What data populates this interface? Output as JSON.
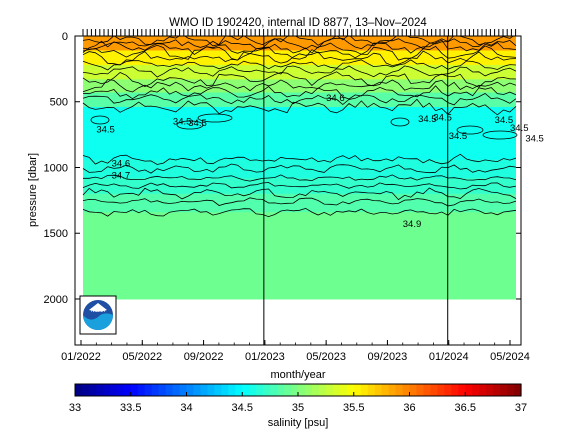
{
  "chart_data": {
    "type": "heatmap",
    "title": "WMO ID 1902420, internal ID 8877, 13–Nov–2024",
    "xlabel": "month/year",
    "ylabel": "pressure [dbar]",
    "colorbar_label": "salinity [psu]",
    "x_ticks": [
      "01/2022",
      "05/2022",
      "09/2022",
      "01/2023",
      "05/2023",
      "09/2023",
      "01/2024",
      "05/2024"
    ],
    "y_ticks": [
      0,
      500,
      1000,
      1500,
      2000
    ],
    "ylim": [
      2350,
      0
    ],
    "colorbar_range": [
      33,
      37
    ],
    "colorbar_ticks": [
      "33",
      "33.5",
      "34",
      "34.5",
      "35",
      "35.5",
      "36",
      "36.5",
      "37"
    ],
    "year_dividers": [
      "01/2023",
      "01/2024"
    ],
    "profile_depth_dbar": 2000,
    "layers": [
      {
        "top": 0,
        "bottom": 110,
        "salinity": 35.9
      },
      {
        "top": 110,
        "bottom": 220,
        "salinity": 35.55
      },
      {
        "top": 220,
        "bottom": 330,
        "salinity": 35.3
      },
      {
        "top": 330,
        "bottom": 430,
        "salinity": 35.05
      },
      {
        "top": 430,
        "bottom": 540,
        "salinity": 34.85
      },
      {
        "top": 540,
        "bottom": 940,
        "salinity": 34.55
      },
      {
        "top": 940,
        "bottom": 1080,
        "salinity": 34.62
      },
      {
        "top": 1080,
        "bottom": 1200,
        "salinity": 34.7
      },
      {
        "top": 1200,
        "bottom": 1340,
        "salinity": 34.82
      },
      {
        "top": 1340,
        "bottom": 2000,
        "salinity": 34.93
      }
    ],
    "contour_labels": [
      {
        "text": "34.6",
        "x": "05/2023",
        "y": 470
      },
      {
        "text": "34.5",
        "x": "02/2022",
        "y": 710
      },
      {
        "text": "34.5",
        "x": "07/2022",
        "y": 650
      },
      {
        "text": "34.5",
        "x": "08/2022",
        "y": 660
      },
      {
        "text": "34.5",
        "x": "11/2023",
        "y": 630
      },
      {
        "text": "34.5",
        "x": "12/2023",
        "y": 620
      },
      {
        "text": "34.5",
        "x": "01/2024",
        "y": 760
      },
      {
        "text": "34.5",
        "x": "04/2024",
        "y": 640
      },
      {
        "text": "34.5",
        "x": "05/2024",
        "y": 700
      },
      {
        "text": "34.5",
        "x": "06/2024",
        "y": 780
      },
      {
        "text": "34.6",
        "x": "03/2022",
        "y": 970
      },
      {
        "text": "34.7",
        "x": "03/2022",
        "y": 1060
      },
      {
        "text": "34.9",
        "x": "10/2023",
        "y": 1430
      }
    ]
  },
  "logo": {
    "name": "NOAA",
    "icon": "noaa-logo-icon"
  }
}
